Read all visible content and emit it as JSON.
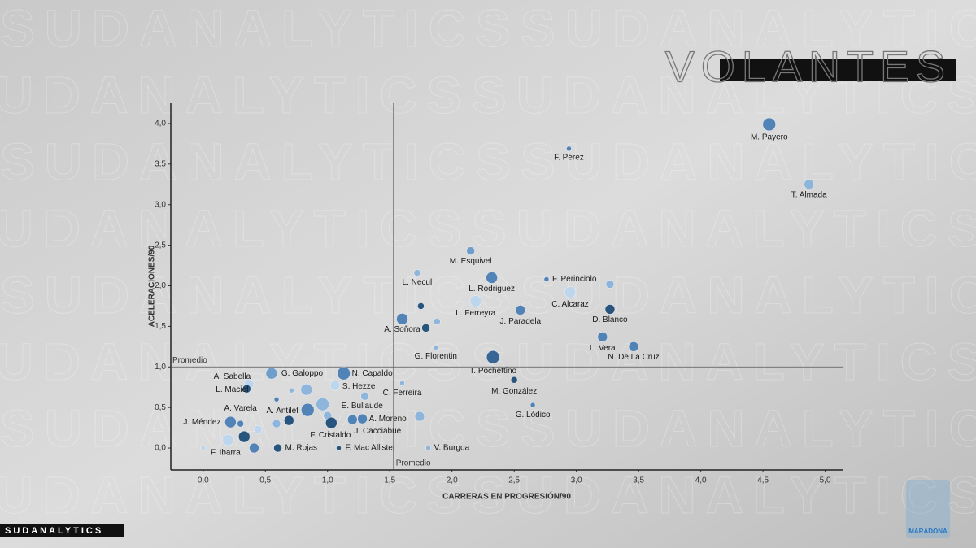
{
  "chart_data": {
    "type": "scatter",
    "title": "VOLANTES",
    "brand": "SUDANALYTICS",
    "watermark": "SUDANALYTICS",
    "logo_text": "MARADONA",
    "x_label": "CARRERAS EN PROGRESIÓN/90",
    "y_label": "ACELERACIONES/90",
    "average_label": "Promedio",
    "x_average": 1.53,
    "y_average": 1.0,
    "xlim": [
      -0.26,
      5.14
    ],
    "ylim": [
      -0.27,
      4.25
    ],
    "xticks": [
      {
        "value": 0,
        "label": "0,0"
      },
      {
        "value": 0.5,
        "label": "0,5"
      },
      {
        "value": 1,
        "label": "1,0"
      },
      {
        "value": 1.5,
        "label": "1,5"
      },
      {
        "value": 2,
        "label": "2,0"
      },
      {
        "value": 2.5,
        "label": "2,5"
      },
      {
        "value": 3,
        "label": "3,0"
      },
      {
        "value": 3.5,
        "label": "3,5"
      },
      {
        "value": 4,
        "label": "4,0"
      },
      {
        "value": 4.5,
        "label": "4,5"
      },
      {
        "value": 5,
        "label": "5,0"
      }
    ],
    "yticks": [
      {
        "value": 0,
        "label": "0,0"
      },
      {
        "value": 0.5,
        "label": "0,5"
      },
      {
        "value": 1,
        "label": "1,0"
      },
      {
        "value": 1.5,
        "label": "1,5"
      },
      {
        "value": 2,
        "label": "2,0"
      },
      {
        "value": 2.5,
        "label": "2,5"
      },
      {
        "value": 3,
        "label": "3,0"
      },
      {
        "value": 3.5,
        "label": "3,5"
      },
      {
        "value": 4,
        "label": "4,0"
      }
    ],
    "labels": [
      "M. Payero",
      "F. Pérez",
      "T. Almada",
      "M. Esquivel",
      "L. Necul",
      "L. Rodriguez",
      "F. Perinciolo",
      null,
      "C. Alcaraz",
      "L. Ferreyra",
      null,
      "J. Paradela",
      "D. Blanco",
      "A. Soñora",
      null,
      null,
      "L. Vera",
      "N. De La Cruz",
      "G. Florentin",
      "T. Pochettino",
      "M. González",
      "G. Lódico",
      "N. Capaldo",
      "G. Galoppo",
      "A. Sabella",
      "L. Maciel",
      "S. Hezze",
      "C. Ferreira",
      null,
      null,
      null,
      null,
      "E. Bullaude",
      "A. Antilef",
      null,
      null,
      "J. Cacciabue",
      "A. Moreno",
      null,
      "F. Cristaldo",
      "J. Méndez",
      "A. Varela",
      null,
      null,
      null,
      "F. Ibarra",
      null,
      null,
      "M. Rojas",
      "F. Mac Allister",
      "V. Burgoa"
    ],
    "x": [
      4.55,
      2.94,
      4.87,
      2.15,
      1.72,
      2.32,
      2.76,
      3.27,
      2.95,
      2.19,
      1.75,
      2.55,
      3.27,
      1.6,
      1.88,
      1.79,
      3.21,
      3.46,
      1.87,
      2.33,
      2.5,
      2.65,
      1.13,
      0.55,
      0.37,
      0.35,
      1.06,
      1.6,
      0.83,
      0.71,
      1.3,
      0.59,
      0.96,
      0.84,
      1.0,
      0.69,
      1.2,
      1.28,
      1.74,
      1.03,
      0.22,
      0.3,
      0.44,
      0.59,
      0.33,
      0.2,
      0.0,
      0.41,
      0.6,
      1.09,
      1.81
    ],
    "y": [
      3.99,
      3.69,
      3.25,
      2.43,
      2.16,
      2.1,
      2.08,
      2.02,
      1.92,
      1.81,
      1.75,
      1.7,
      1.71,
      1.59,
      1.56,
      1.48,
      1.37,
      1.25,
      1.24,
      1.12,
      0.84,
      0.53,
      0.92,
      0.92,
      0.79,
      0.73,
      0.77,
      0.8,
      0.72,
      0.71,
      0.64,
      0.6,
      0.54,
      0.47,
      0.4,
      0.34,
      0.35,
      0.36,
      0.39,
      0.31,
      0.32,
      0.3,
      0.23,
      0.3,
      0.14,
      0.1,
      0.0,
      0.0,
      0.0,
      0.0,
      0.0
    ],
    "sizes": [
      8,
      3,
      6,
      5,
      4,
      7,
      3,
      5,
      7,
      7,
      4,
      6,
      6,
      7,
      4,
      5,
      6,
      6,
      3,
      8,
      4,
      3,
      8,
      7,
      6,
      5,
      6,
      3,
      7,
      3,
      5,
      3,
      8,
      8,
      5,
      6,
      6,
      6,
      6,
      7,
      7,
      4,
      5,
      5,
      7,
      7,
      3,
      6,
      5,
      3,
      3
    ],
    "colors": [
      "#4a7fb5",
      "#4a7fb5",
      "#8ab4dc",
      "#6b9bcb",
      "#8ab4dc",
      "#4a7fb5",
      "#4a7fb5",
      "#8ab4dc",
      "#bcd6ee",
      "#bcd6ee",
      "#1f4e79",
      "#4a7fb5",
      "#1f4e79",
      "#4a7fb5",
      "#8ab4dc",
      "#1f4e79",
      "#4a7fb5",
      "#4a7fb5",
      "#8ab4dc",
      "#2f5f93",
      "#1f4e79",
      "#4a7fb5",
      "#4a7fb5",
      "#6b9bcb",
      "#bcd6ee",
      "#1f4e79",
      "#bcd6ee",
      "#8ab4dc",
      "#8ab4dc",
      "#8ab4dc",
      "#8ab4dc",
      "#4a7fb5",
      "#8ab4dc",
      "#4a7fb5",
      "#8ab4dc",
      "#1f4e79",
      "#4a7fb5",
      "#4a7fb5",
      "#8ab4dc",
      "#1f4e79",
      "#4a7fb5",
      "#4a7fb5",
      "#bcd6ee",
      "#8ab4dc",
      "#1f4e79",
      "#bcd6ee",
      "#bcd6ee",
      "#4a7fb5",
      "#1f4e79",
      "#1f4e79",
      "#8ab4dc"
    ]
  }
}
